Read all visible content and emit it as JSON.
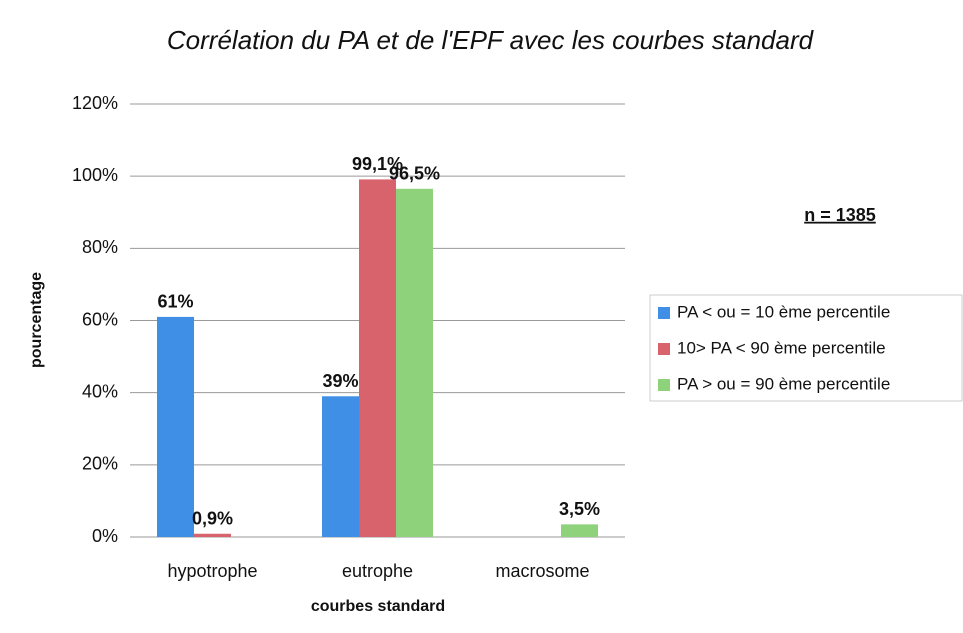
{
  "chart_data": {
    "type": "bar",
    "title": "Corrélation du PA et de l'EPF avec les courbes standard",
    "x_label": "courbes standard",
    "y_label": "pourcentage",
    "annotation": "n = 1385",
    "categories": [
      "hypotrophe",
      "eutrophe",
      "macrosome"
    ],
    "series": [
      {
        "name": "PA < ou = 10 ème percentile",
        "color": "#3f8fe6",
        "values": [
          61,
          39,
          null
        ],
        "value_labels": [
          "61%",
          "39%",
          null
        ]
      },
      {
        "name": "10> PA < 90 ème percentile",
        "color": "#d9636d",
        "values": [
          0.9,
          99.1,
          null
        ],
        "value_labels": [
          "0,9%",
          "99,1%",
          null
        ]
      },
      {
        "name": "PA > ou = 90 ème percentile",
        "color": "#8fd27c",
        "values": [
          null,
          96.5,
          3.5
        ],
        "value_labels": [
          null,
          "96,5%",
          "3,5%"
        ]
      }
    ],
    "ylim": [
      0,
      120
    ],
    "yticks": [
      {
        "value": 0,
        "label": "0%"
      },
      {
        "value": 20,
        "label": "20%"
      },
      {
        "value": 40,
        "label": "40%"
      },
      {
        "value": 60,
        "label": "60%"
      },
      {
        "value": 80,
        "label": "80%"
      },
      {
        "value": 100,
        "label": "100%"
      },
      {
        "value": 120,
        "label": "120%"
      }
    ],
    "grid": true,
    "legend": "right"
  }
}
